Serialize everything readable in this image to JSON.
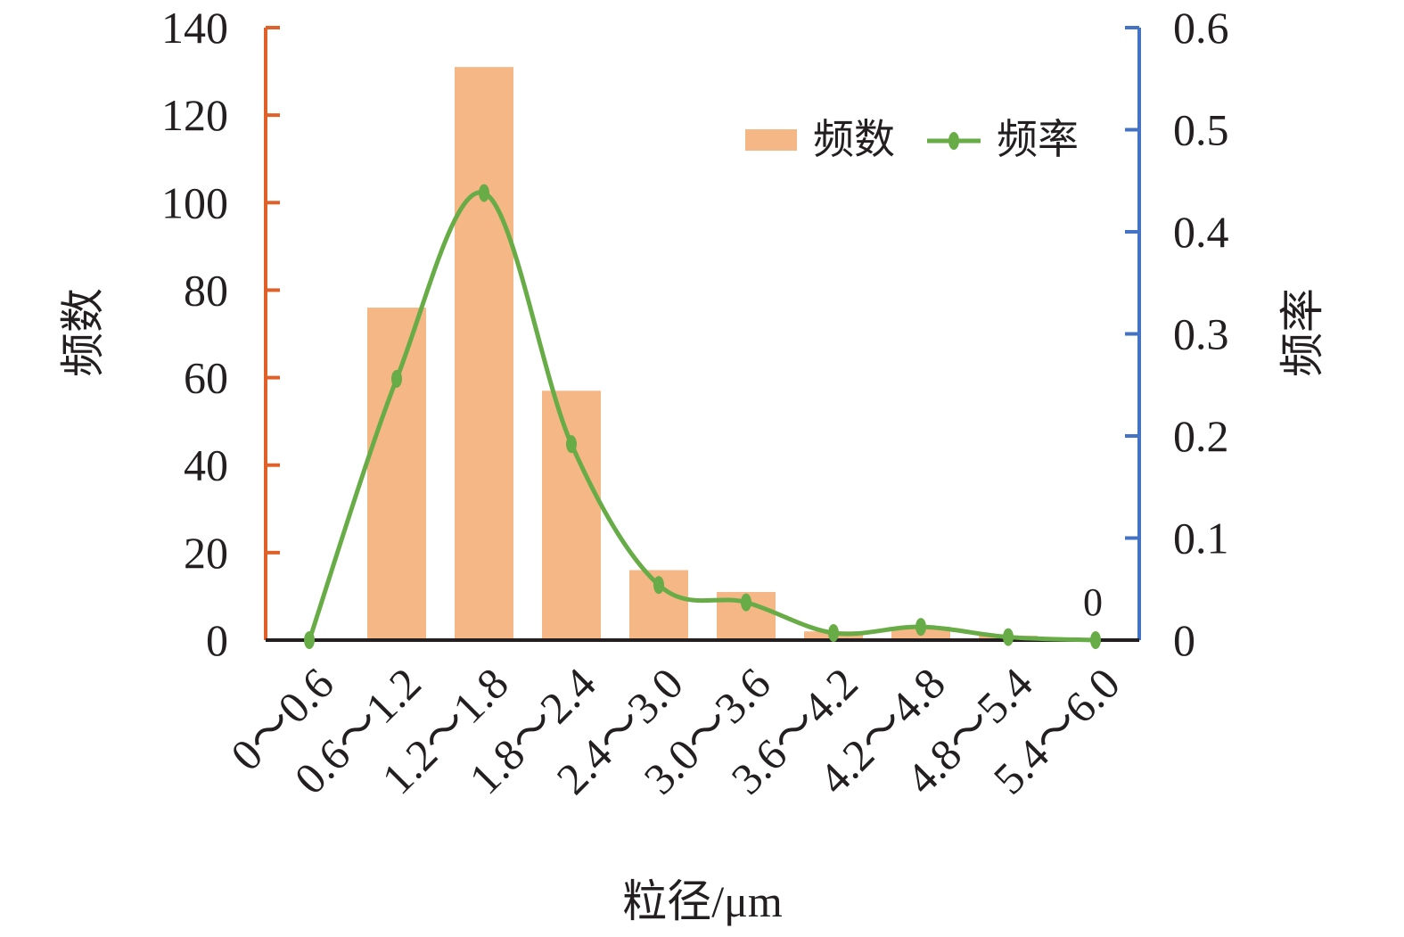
{
  "chart_data": {
    "type": "bar",
    "xlabel": "粒径/μm",
    "categories": [
      "0～0.6",
      "0.6～1.2",
      "1.2～1.8",
      "1.8～2.4",
      "2.4～3.0",
      "3.0～3.6",
      "3.6～4.2",
      "4.2～4.8",
      "4.8～5.4",
      "5.4～6.0"
    ],
    "series": [
      {
        "name": "频数",
        "type": "bar",
        "axis": "left",
        "color": "#f6b787",
        "values": [
          0,
          76,
          131,
          57,
          16,
          11,
          2,
          3,
          1,
          0
        ]
      },
      {
        "name": "频率",
        "type": "line",
        "axis": "right",
        "color": "#67ac46",
        "smooth": true,
        "values": [
          0,
          0.256,
          0.438,
          0.192,
          0.054,
          0.037,
          0.007,
          0.013,
          0.003,
          0
        ]
      }
    ],
    "y_left": {
      "label": "频数",
      "ylim": [
        0,
        140
      ],
      "ticks": [
        0,
        20,
        40,
        60,
        80,
        100,
        120,
        140
      ],
      "color": "#e0602a"
    },
    "y_right": {
      "label": "频率",
      "ylim": [
        0,
        0.6
      ],
      "ticks": [
        "0",
        "0.1",
        "0.2",
        "0.3",
        "0.4",
        "0.5",
        "0.6"
      ],
      "color": "#4472c4"
    },
    "data_labels": [
      {
        "category": "5.4～6.0",
        "text": "0"
      }
    ],
    "legend": {
      "placement": "top-right",
      "entries": [
        "频数",
        "频率"
      ]
    },
    "grid": false
  }
}
